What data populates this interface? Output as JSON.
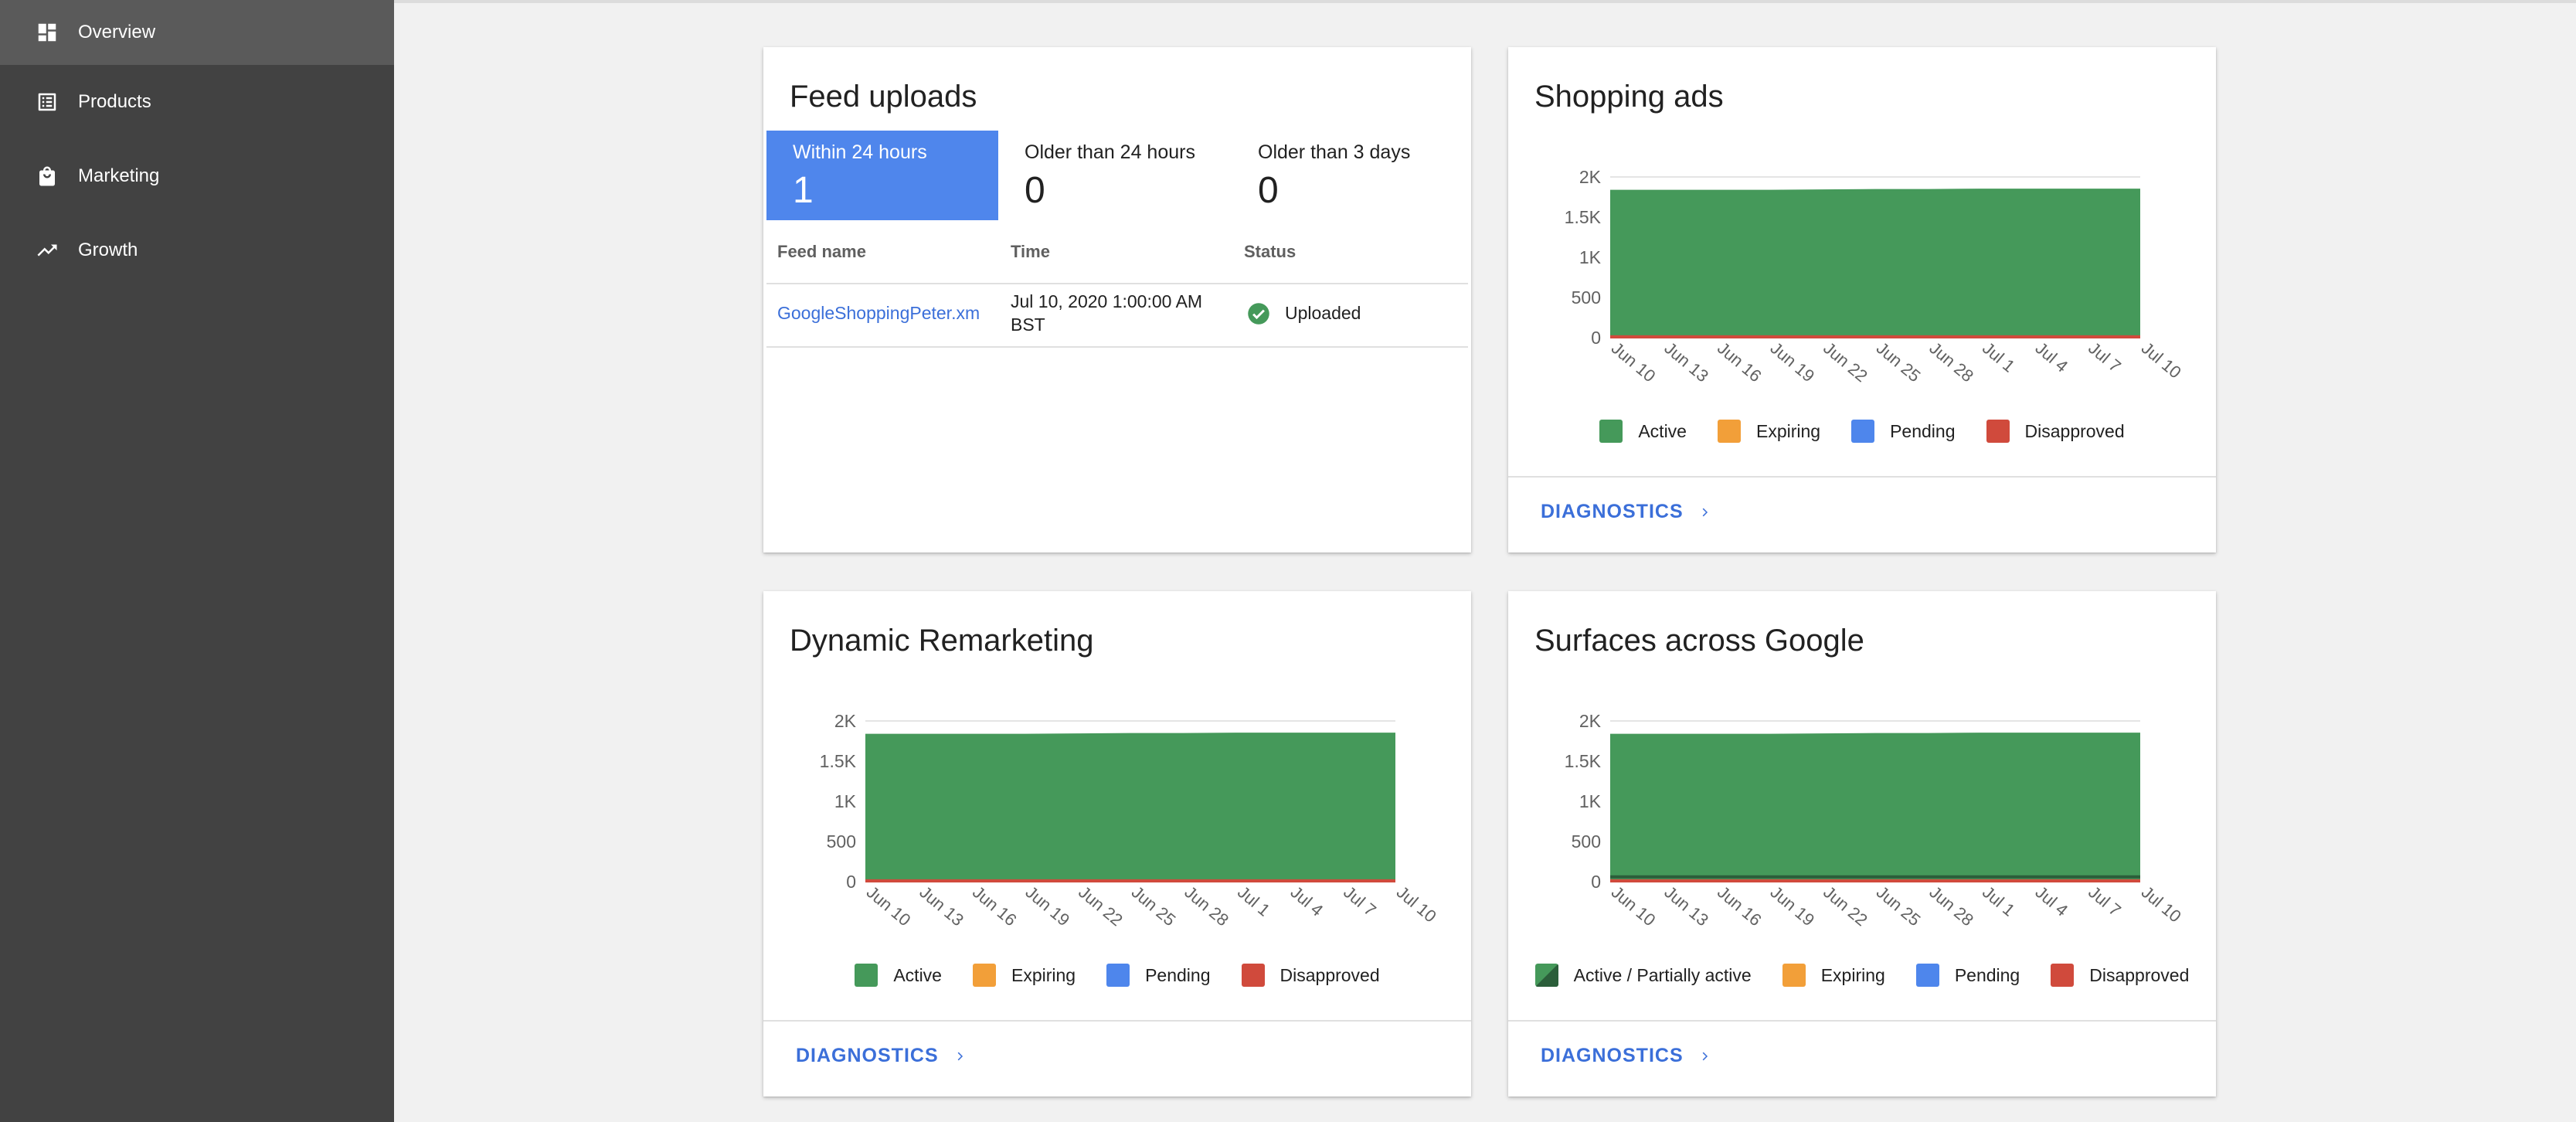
{
  "sidebar": {
    "items": [
      {
        "label": "Overview",
        "icon": "dashboard-icon",
        "active": true
      },
      {
        "label": "Products",
        "icon": "list-icon",
        "active": false
      },
      {
        "label": "Marketing",
        "icon": "shopping-bag-icon",
        "active": false
      },
      {
        "label": "Growth",
        "icon": "trending-up-icon",
        "active": false
      }
    ]
  },
  "feed_uploads": {
    "title": "Feed uploads",
    "stats": [
      {
        "label": "Within 24 hours",
        "value": "1",
        "selected": true
      },
      {
        "label": "Older than 24 hours",
        "value": "0",
        "selected": false
      },
      {
        "label": "Older than 3 days",
        "value": "0",
        "selected": false
      }
    ],
    "table": {
      "headers": [
        "Feed name",
        "Time",
        "Status"
      ],
      "rows": [
        {
          "name": "GoogleShoppingPeter.xm",
          "time_line1": "Jul 10, 2020 1:00:00 AM",
          "time_line2": "BST",
          "status": "Uploaded",
          "status_icon": "check-circle-icon"
        }
      ]
    }
  },
  "shopping_ads": {
    "title": "Shopping ads",
    "legend": [
      "Active",
      "Expiring",
      "Pending",
      "Disapproved"
    ],
    "diagnostics_label": "DIAGNOSTICS"
  },
  "dynamic_remarketing": {
    "title": "Dynamic Remarketing",
    "legend": [
      "Active",
      "Expiring",
      "Pending",
      "Disapproved"
    ],
    "diagnostics_label": "DIAGNOSTICS"
  },
  "surfaces": {
    "title": "Surfaces across Google",
    "legend": [
      "Active / Partially active",
      "Expiring",
      "Pending",
      "Disapproved"
    ],
    "diagnostics_label": "DIAGNOSTICS"
  },
  "colors": {
    "active": "#45995a",
    "active_dark": "#2b5e3a",
    "expiring": "#f29f39",
    "pending": "#4e86ec",
    "disapproved": "#d04a3c",
    "accent": "#3b6fd9"
  },
  "chart_data": [
    {
      "type": "area",
      "title": "Shopping ads",
      "x": [
        "Jun 10",
        "Jun 13",
        "Jun 16",
        "Jun 19",
        "Jun 22",
        "Jun 25",
        "Jun 28",
        "Jul 1",
        "Jul 4",
        "Jul 7",
        "Jul 10"
      ],
      "yticks": [
        "0",
        "500",
        "1K",
        "1.5K",
        "2K"
      ],
      "ylim": [
        0,
        2000
      ],
      "stacked": true,
      "series": [
        {
          "name": "Disapproved",
          "values": [
            30,
            30,
            30,
            30,
            30,
            30,
            30,
            30,
            30,
            30,
            30
          ]
        },
        {
          "name": "Pending",
          "values": [
            0,
            0,
            0,
            0,
            0,
            0,
            0,
            0,
            0,
            0,
            0
          ]
        },
        {
          "name": "Expiring",
          "values": [
            0,
            0,
            0,
            0,
            0,
            0,
            0,
            0,
            0,
            0,
            0
          ]
        },
        {
          "name": "Active",
          "values": [
            1810,
            1810,
            1810,
            1810,
            1815,
            1820,
            1820,
            1825,
            1825,
            1825,
            1825
          ]
        }
      ]
    },
    {
      "type": "area",
      "title": "Dynamic Remarketing",
      "x": [
        "Jun 10",
        "Jun 13",
        "Jun 16",
        "Jun 19",
        "Jun 22",
        "Jun 25",
        "Jun 28",
        "Jul 1",
        "Jul 4",
        "Jul 7",
        "Jul 10"
      ],
      "yticks": [
        "0",
        "500",
        "1K",
        "1.5K",
        "2K"
      ],
      "ylim": [
        0,
        2000
      ],
      "stacked": true,
      "series": [
        {
          "name": "Disapproved",
          "values": [
            30,
            30,
            30,
            30,
            30,
            30,
            30,
            30,
            30,
            30,
            30
          ]
        },
        {
          "name": "Pending",
          "values": [
            0,
            0,
            0,
            0,
            0,
            0,
            0,
            0,
            0,
            0,
            0
          ]
        },
        {
          "name": "Expiring",
          "values": [
            0,
            0,
            0,
            0,
            0,
            0,
            0,
            0,
            0,
            0,
            0
          ]
        },
        {
          "name": "Active",
          "values": [
            1810,
            1810,
            1810,
            1810,
            1815,
            1820,
            1820,
            1825,
            1825,
            1825,
            1825
          ]
        }
      ]
    },
    {
      "type": "area",
      "title": "Surfaces across Google",
      "x": [
        "Jun 10",
        "Jun 13",
        "Jun 16",
        "Jun 19",
        "Jun 22",
        "Jun 25",
        "Jun 28",
        "Jul 1",
        "Jul 4",
        "Jul 7",
        "Jul 10"
      ],
      "yticks": [
        "0",
        "500",
        "1K",
        "1.5K",
        "2K"
      ],
      "ylim": [
        0,
        2000
      ],
      "stacked": true,
      "series": [
        {
          "name": "Disapproved",
          "values": [
            30,
            30,
            30,
            30,
            30,
            30,
            30,
            30,
            30,
            30,
            30
          ]
        },
        {
          "name": "Pending",
          "values": [
            0,
            0,
            0,
            0,
            0,
            0,
            0,
            0,
            0,
            0,
            0
          ]
        },
        {
          "name": "Expiring",
          "values": [
            0,
            0,
            0,
            0,
            0,
            0,
            0,
            0,
            0,
            0,
            0
          ]
        },
        {
          "name": "Active / Partially active",
          "values": [
            1810,
            1810,
            1810,
            1810,
            1815,
            1820,
            1820,
            1825,
            1825,
            1825,
            1825
          ]
        }
      ]
    }
  ]
}
